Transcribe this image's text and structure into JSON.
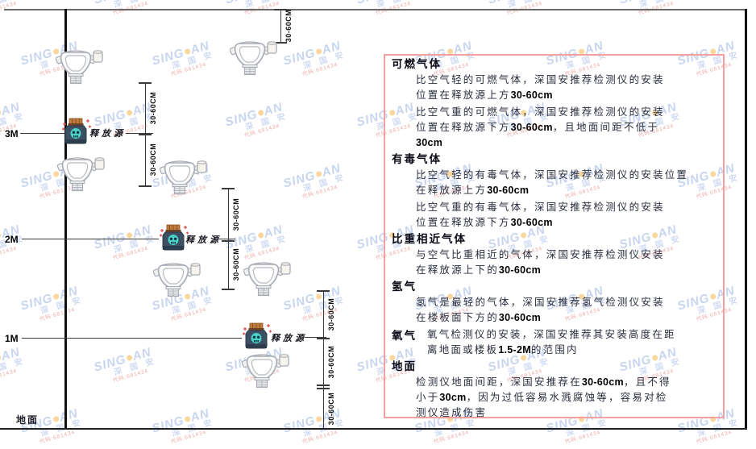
{
  "diagram": {
    "height_labels": [
      "3M",
      "2M",
      "1M"
    ],
    "ground_label": "地面",
    "release_source_label": "释放源",
    "dim_label": "30-60CM"
  },
  "panel": {
    "sections": [
      {
        "heading": "可燃气体",
        "inline": false,
        "paras": [
          [
            [
              {
                "t": "比空气轻的可燃气体，深国安推荐检测仪的安装",
                "b": false
              }
            ],
            [
              {
                "t": "位置在释放源上方",
                "b": false
              },
              {
                "t": "30-60cm",
                "b": true
              }
            ]
          ],
          [
            [
              {
                "t": "比空气重的可燃气体，深国安推荐检测仪的安装",
                "b": false
              }
            ],
            [
              {
                "t": "位置在释放源下方",
                "b": false
              },
              {
                "t": "30-60cm",
                "b": true
              },
              {
                "t": "，且地面间距不低于",
                "b": false
              }
            ],
            [
              {
                "t": "30cm",
                "b": true
              }
            ]
          ]
        ]
      },
      {
        "heading": "有毒气体",
        "inline": false,
        "paras": [
          [
            [
              {
                "t": "比空气轻的有毒气体，深国安推荐检测仪的安装位置",
                "b": false
              }
            ],
            [
              {
                "t": "在释放源上方",
                "b": false
              },
              {
                "t": "30-60cm",
                "b": true
              }
            ]
          ],
          [
            [
              {
                "t": "比空气重的有毒气体，深国安推荐检测仪的安装",
                "b": false
              }
            ],
            [
              {
                "t": "位置在释放源下方",
                "b": false
              },
              {
                "t": "30-60cm",
                "b": true
              }
            ]
          ]
        ]
      },
      {
        "heading": "比重相近气体",
        "inline": false,
        "paras": [
          [
            [
              {
                "t": "与空气比重相近的气体，深国安推荐检测仪安装",
                "b": false
              }
            ],
            [
              {
                "t": "在释放源上下的",
                "b": false
              },
              {
                "t": "30-60cm",
                "b": true
              }
            ]
          ]
        ]
      },
      {
        "heading": "氢气",
        "inline": false,
        "paras": [
          [
            [
              {
                "t": "氢气是最轻的气体，深国安推荐氢气检测仪安装",
                "b": false
              }
            ],
            [
              {
                "t": "在楼板面下方的",
                "b": false
              },
              {
                "t": "30-60cm",
                "b": true
              }
            ]
          ]
        ]
      },
      {
        "heading": "氧气",
        "inline": true,
        "paras": [
          [
            [
              {
                "t": "氧气检测仪的安装，深国安推荐其安装高度在距",
                "b": false
              }
            ],
            [
              {
                "t": "离地面或楼板",
                "b": false
              },
              {
                "t": "1.5-2M",
                "b": true
              },
              {
                "t": "的范围内",
                "b": false
              }
            ]
          ]
        ]
      },
      {
        "heading": "地面",
        "inline": false,
        "paras": [
          [
            [
              {
                "t": "检测仪地面间距，深国安推荐在",
                "b": false
              },
              {
                "t": "30-60cm",
                "b": true
              },
              {
                "t": "，且不得",
                "b": false
              }
            ],
            [
              {
                "t": "小于",
                "b": false
              },
              {
                "t": "30cm",
                "b": true
              },
              {
                "t": "，因为过低容易水溅腐蚀等，容易对检",
                "b": false
              }
            ],
            [
              {
                "t": "测仪造成伤害",
                "b": false
              }
            ]
          ]
        ]
      }
    ]
  },
  "watermark": {
    "brand_left": "SING",
    "brand_right": "AN",
    "cn": "深 国 安",
    "code": "代码:681434"
  },
  "colors": {
    "panel_border": "#f5a0a0",
    "watermark_blue": "#4874ce",
    "watermark_orange": "#f5a623",
    "source_body": "#3c4f63",
    "source_cap": "#c07a3c",
    "skull_teal": "#49d1c8",
    "sparkle_red": "#e14b4b",
    "detector_stroke": "#a8acb4"
  }
}
